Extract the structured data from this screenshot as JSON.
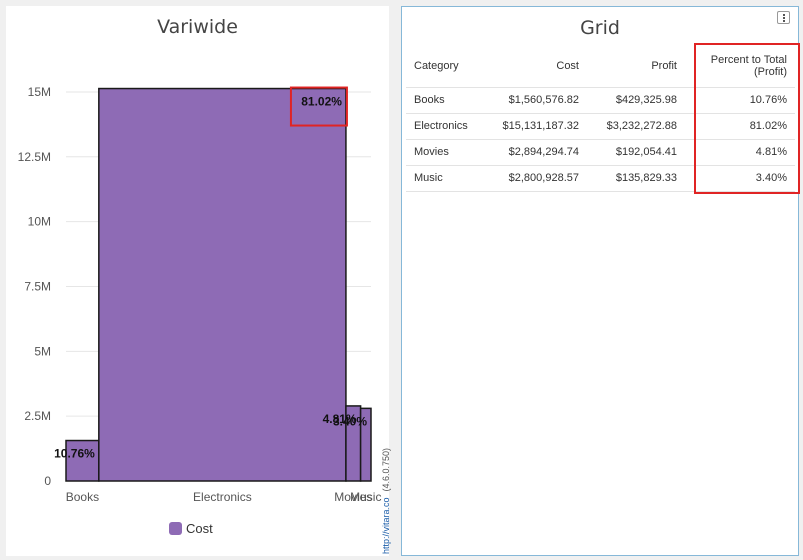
{
  "chart": {
    "title": "Variwide",
    "legend_label": "Cost",
    "credit_link": "http://vitara.co",
    "credit_version": "(4.6.0.750)"
  },
  "chart_data": {
    "type": "bar",
    "variant": "variwide",
    "title": "Variwide",
    "categories": [
      "Books",
      "Electronics",
      "Movies",
      "Music"
    ],
    "series": [
      {
        "name": "Cost",
        "values": [
          1560576.82,
          15131187.32,
          2894294.74,
          2800928.57
        ]
      }
    ],
    "widths": [
      429325.98,
      3232272.88,
      192054.41,
      135829.33
    ],
    "data_labels": [
      "10.76%",
      "81.02%",
      "4.81%",
      "3.40%"
    ],
    "ylim": [
      0,
      16000000
    ],
    "yticks": [
      0,
      2500000,
      5000000,
      7500000,
      10000000,
      12500000,
      15000000
    ],
    "ytick_labels": [
      "0",
      "2.5M",
      "5M",
      "7.5M",
      "10M",
      "12.5M",
      "15M"
    ],
    "grid": true,
    "legend": "bottom-center",
    "color": "#8e6bb5",
    "highlighted_label": "81.02%"
  },
  "grid": {
    "title": "Grid",
    "headers": {
      "category": "Category",
      "cost": "Cost",
      "profit": "Profit",
      "percent": "Percent to Total (Profit)"
    },
    "rows": [
      {
        "category": "Books",
        "cost": "$1,560,576.82",
        "profit": "$429,325.98",
        "percent": "10.76%"
      },
      {
        "category": "Electronics",
        "cost": "$15,131,187.32",
        "profit": "$3,232,272.88",
        "percent": "81.02%"
      },
      {
        "category": "Movies",
        "cost": "$2,894,294.74",
        "profit": "$192,054.41",
        "percent": "4.81%"
      },
      {
        "category": "Music",
        "cost": "$2,800,928.57",
        "profit": "$135,829.33",
        "percent": "3.40%"
      }
    ]
  }
}
